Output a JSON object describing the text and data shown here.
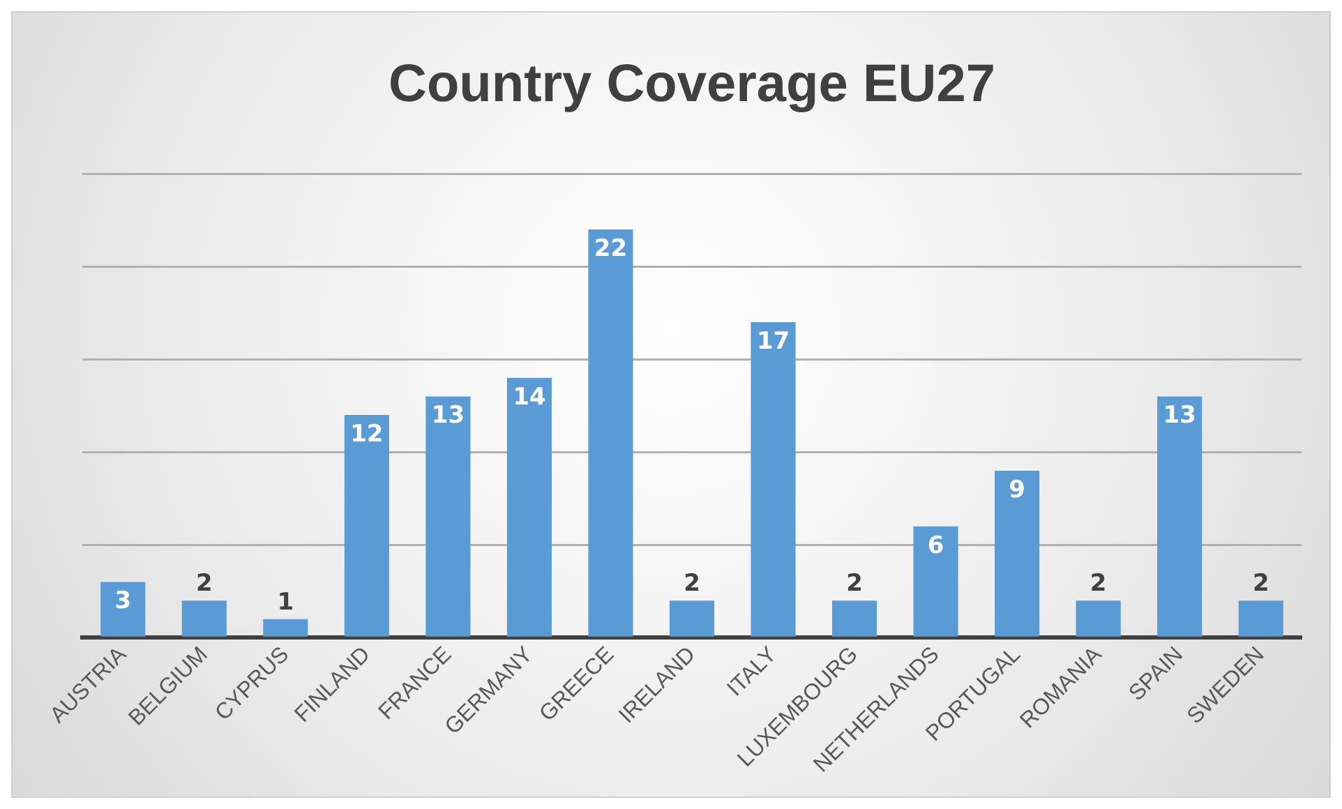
{
  "chart_data": {
    "type": "bar",
    "title": "Country Coverage EU27",
    "categories": [
      "AUSTRIA",
      "BELGIUM",
      "CYPRUS",
      "FINLAND",
      "FRANCE",
      "GERMANY",
      "GREECE",
      "IRELAND",
      "ITALY",
      "LUXEMBOURG",
      "NETHERLANDS",
      "PORTUGAL",
      "ROMANIA",
      "SPAIN",
      "SWEDEN"
    ],
    "values": [
      3,
      2,
      1,
      12,
      13,
      14,
      22,
      2,
      17,
      2,
      6,
      9,
      2,
      13,
      2
    ],
    "color": "#5b9bd5",
    "grid": "y",
    "tick_labels": "x",
    "data_labels": true,
    "legend": false
  }
}
